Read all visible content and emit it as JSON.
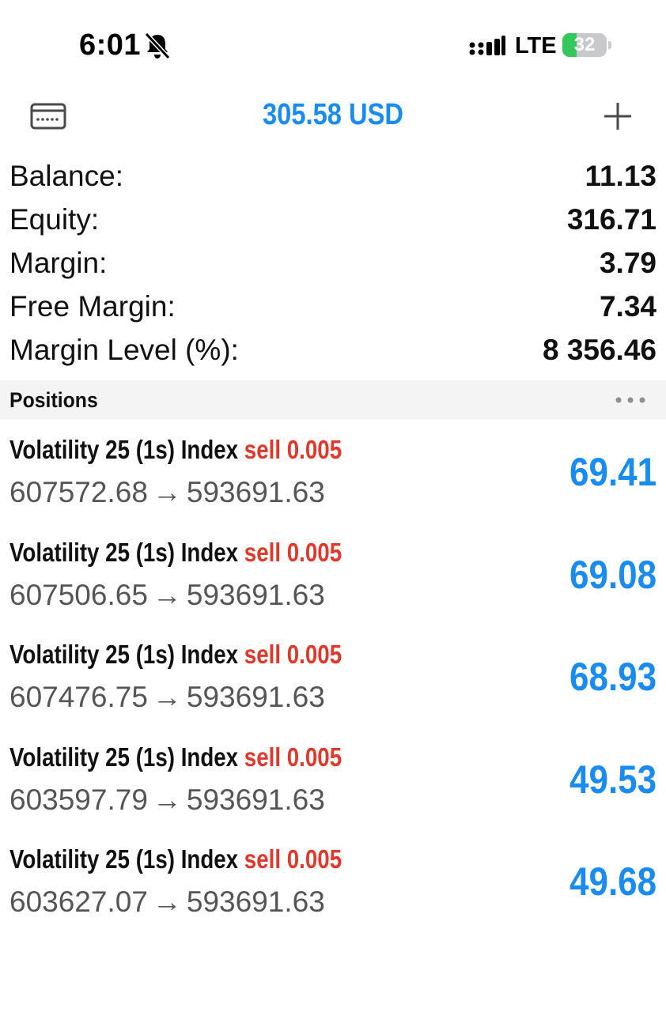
{
  "status_bar": {
    "time": "6:01",
    "network": "LTE",
    "battery_level": "32",
    "battery_fraction": 0.32,
    "icons": [
      "bell-slash-icon",
      "signal-icon",
      "battery-charging-icon"
    ]
  },
  "toolbar": {
    "title": "305.58 USD",
    "left_icon": "wallet-icon",
    "right_icon": "plus-icon",
    "accent_color": "#1a8cf0"
  },
  "summary": [
    {
      "label": "Balance:",
      "value": "11.13"
    },
    {
      "label": "Equity:",
      "value": "316.71"
    },
    {
      "label": "Margin:",
      "value": "3.79"
    },
    {
      "label": "Free Margin:",
      "value": "7.34"
    },
    {
      "label": "Margin Level (%):",
      "value": "8 356.46"
    }
  ],
  "positions_header": {
    "title": "Positions",
    "menu_icon": "more-icon"
  },
  "positions": [
    {
      "symbol": "Volatility 25 (1s) Index",
      "side": "sell",
      "volume": "0.005",
      "open_price": "607572.68",
      "arrow": "→",
      "current_price": "593691.63",
      "profit": "69.41"
    },
    {
      "symbol": "Volatility 25 (1s) Index",
      "side": "sell",
      "volume": "0.005",
      "open_price": "607506.65",
      "arrow": "→",
      "current_price": "593691.63",
      "profit": "69.08"
    },
    {
      "symbol": "Volatility 25 (1s) Index",
      "side": "sell",
      "volume": "0.005",
      "open_price": "607476.75",
      "arrow": "→",
      "current_price": "593691.63",
      "profit": "68.93"
    },
    {
      "symbol": "Volatility 25 (1s) Index",
      "side": "sell",
      "volume": "0.005",
      "open_price": "603597.79",
      "arrow": "→",
      "current_price": "593691.63",
      "profit": "49.53"
    },
    {
      "symbol": "Volatility 25 (1s) Index",
      "side": "sell",
      "volume": "0.005",
      "open_price": "603627.07",
      "arrow": "→",
      "current_price": "593691.63",
      "profit": "49.68"
    }
  ],
  "colors": {
    "sell": "#e0392b",
    "profit": "#1a8cf0",
    "battery": "#34c759"
  }
}
